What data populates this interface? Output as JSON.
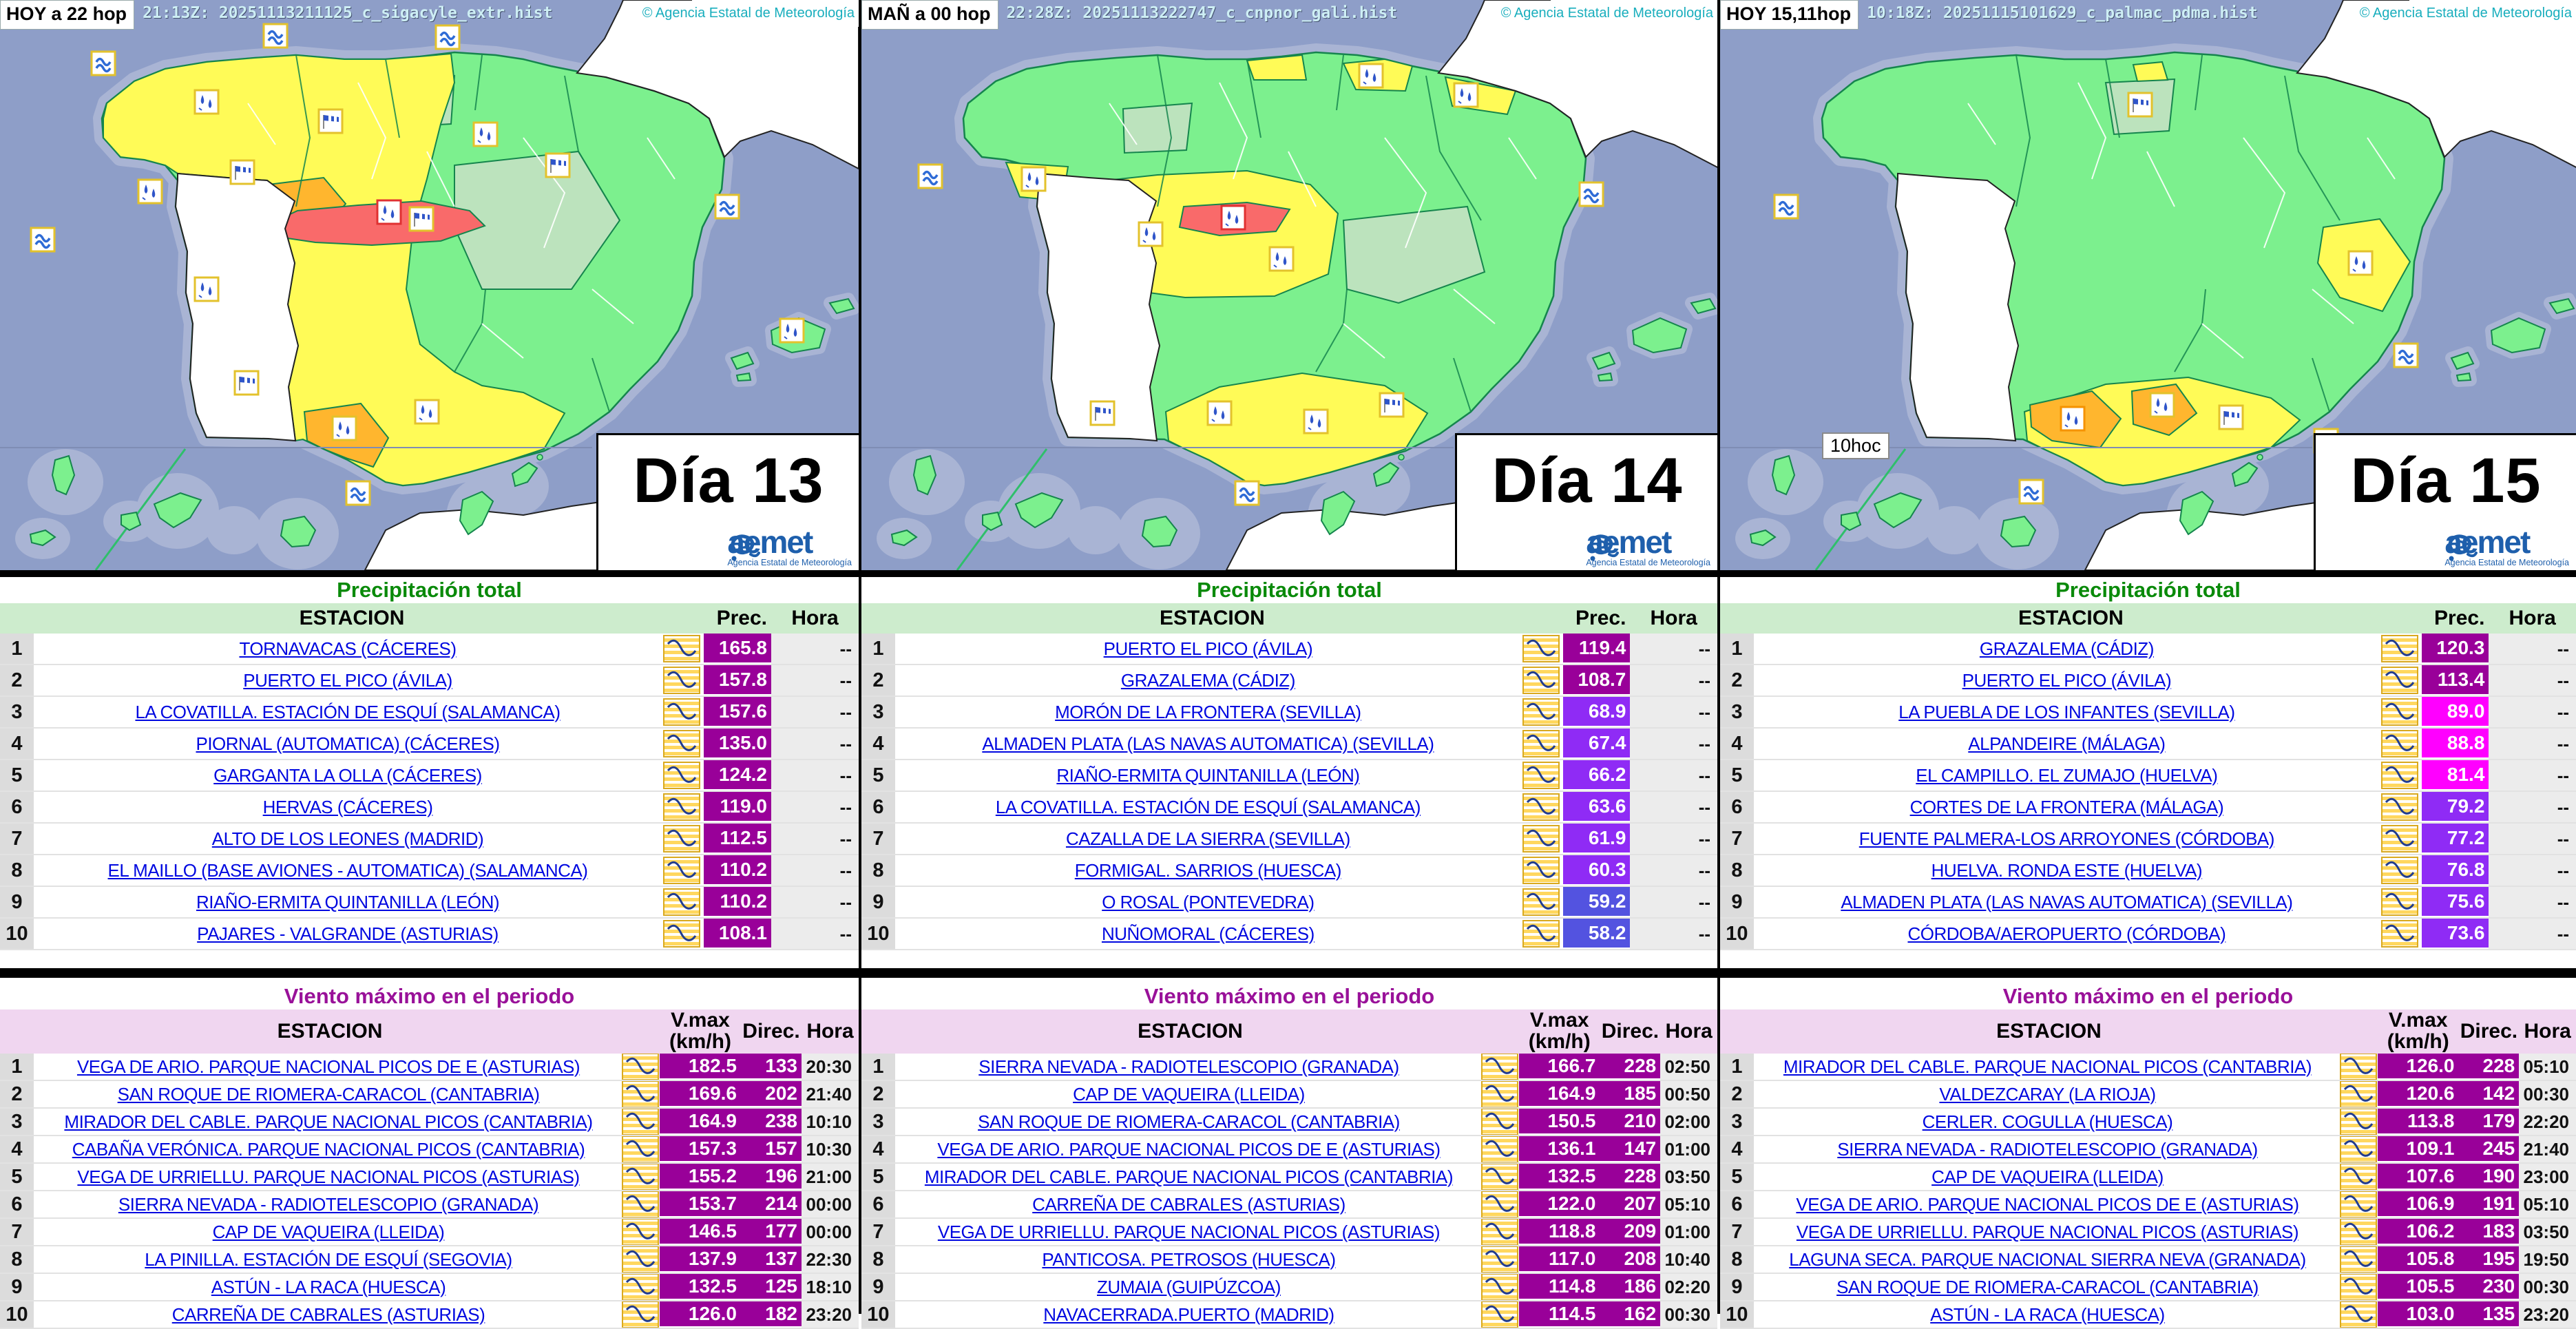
{
  "palette": {
    "sea": "#8e9ec8",
    "coast_buffer": "#a9b4d4",
    "land_green": "#7cf08e",
    "land_pale_green": "#bce3bd",
    "warn_yellow": "#fffb57",
    "warn_orange": "#ffb62e",
    "warn_red": "#f96a6a",
    "prec_over100": "#990099",
    "prec_80_100": "#ff00ff",
    "prec_60_80": "#8f2bf5",
    "prec_40_60": "#5353e0",
    "wind_value": "#990099",
    "link_blue": "#0008e0",
    "title_green": "#0a8a0a",
    "title_purple": "#991199"
  },
  "shared": {
    "copyright": "© Agencia Estatal de Meteorología",
    "precip_title": "Precipitación total",
    "wind_title": "Viento máximo en el periodo",
    "col_estacion": "ESTACION",
    "col_prec": "Prec.",
    "col_hora": "Hora",
    "col_vmax_line1": "V.max",
    "col_vmax_line2": "(km/h)",
    "col_direc": "Direc.",
    "aemet": "aemet",
    "aemet_tagline": "Agencia Estatal de Meteorología"
  },
  "panels": [
    {
      "topbar_mode": "HOY a 22 hop",
      "topbar_stamp": "21:13Z: 20251113211125_c_sigacyle_extr.hist",
      "day_label": "Día 13",
      "precip_rows": [
        {
          "rank": "1",
          "station": "TORNAVACAS (CÁCERES)",
          "prec": "165.8",
          "hora": "--",
          "level": "p100"
        },
        {
          "rank": "2",
          "station": "PUERTO EL PICO (ÁVILA)",
          "prec": "157.8",
          "hora": "--",
          "level": "p100"
        },
        {
          "rank": "3",
          "station": "LA COVATILLA. ESTACIÓN DE ESQUÍ (SALAMANCA)",
          "prec": "157.6",
          "hora": "--",
          "level": "p100"
        },
        {
          "rank": "4",
          "station": "PIORNAL (AUTOMATICA) (CÁCERES)",
          "prec": "135.0",
          "hora": "--",
          "level": "p100"
        },
        {
          "rank": "5",
          "station": "GARGANTA LA OLLA (CÁCERES)",
          "prec": "124.2",
          "hora": "--",
          "level": "p100"
        },
        {
          "rank": "6",
          "station": "HERVAS (CÁCERES)",
          "prec": "119.0",
          "hora": "--",
          "level": "p100"
        },
        {
          "rank": "7",
          "station": "ALTO DE LOS LEONES (MADRID)",
          "prec": "112.5",
          "hora": "--",
          "level": "p100"
        },
        {
          "rank": "8",
          "station": "EL MAILLO (BASE AVIONES - AUTOMATICA) (SALAMANCA)",
          "prec": "110.2",
          "hora": "--",
          "level": "p100"
        },
        {
          "rank": "9",
          "station": "RIAÑO-ERMITA QUINTANILLA (LEÓN)",
          "prec": "110.2",
          "hora": "--",
          "level": "p100"
        },
        {
          "rank": "10",
          "station": "PAJARES - VALGRANDE (ASTURIAS)",
          "prec": "108.1",
          "hora": "--",
          "level": "p100"
        }
      ],
      "wind_rows": [
        {
          "rank": "1",
          "station": "VEGA DE ARIO. PARQUE NACIONAL PICOS DE E (ASTURIAS)",
          "vmax": "182.5",
          "direc": "133",
          "hora": "20:30"
        },
        {
          "rank": "2",
          "station": "SAN ROQUE DE RIOMERA-CARACOL (CANTABRIA)",
          "vmax": "169.6",
          "direc": "202",
          "hora": "21:40"
        },
        {
          "rank": "3",
          "station": "MIRADOR DEL CABLE. PARQUE NACIONAL PICOS (CANTABRIA)",
          "vmax": "164.9",
          "direc": "238",
          "hora": "10:10"
        },
        {
          "rank": "4",
          "station": "CABAÑA VERÓNICA. PARQUE NACIONAL PICOS (CANTABRIA)",
          "vmax": "157.3",
          "direc": "157",
          "hora": "10:30"
        },
        {
          "rank": "5",
          "station": "VEGA DE URRIELLU. PARQUE NACIONAL PICOS (ASTURIAS)",
          "vmax": "155.2",
          "direc": "196",
          "hora": "21:00"
        },
        {
          "rank": "6",
          "station": "SIERRA NEVADA - RADIOTELESCOPIO (GRANADA)",
          "vmax": "153.7",
          "direc": "214",
          "hora": "00:00"
        },
        {
          "rank": "7",
          "station": "CAP DE VAQUEIRA (LLEIDA)",
          "vmax": "146.5",
          "direc": "177",
          "hora": "00:00"
        },
        {
          "rank": "8",
          "station": "LA PINILLA. ESTACIÓN DE ESQUÍ (SEGOVIA)",
          "vmax": "137.9",
          "direc": "137",
          "hora": "22:30"
        },
        {
          "rank": "9",
          "station": "ASTÚN - LA RACA (HUESCA)",
          "vmax": "132.5",
          "direc": "125",
          "hora": "18:10"
        },
        {
          "rank": "10",
          "station": "CARREÑA DE CABRALES (ASTURIAS)",
          "vmax": "126.0",
          "direc": "182",
          "hora": "23:20"
        }
      ]
    },
    {
      "topbar_mode": "MAÑ a 00 hop",
      "topbar_stamp": "22:28Z: 20251113222747_c_cnpnor_gali.hist",
      "day_label": "Día 14",
      "precip_rows": [
        {
          "rank": "1",
          "station": "PUERTO EL PICO (ÁVILA)",
          "prec": "119.4",
          "hora": "--",
          "level": "p100"
        },
        {
          "rank": "2",
          "station": "GRAZALEMA (CÁDIZ)",
          "prec": "108.7",
          "hora": "--",
          "level": "p100"
        },
        {
          "rank": "3",
          "station": "MORÓN DE LA FRONTERA (SEVILLA)",
          "prec": "68.9",
          "hora": "--",
          "level": "p60"
        },
        {
          "rank": "4",
          "station": "ALMADEN PLATA (LAS NAVAS AUTOMATICA) (SEVILLA)",
          "prec": "67.4",
          "hora": "--",
          "level": "p60"
        },
        {
          "rank": "5",
          "station": "RIAÑO-ERMITA QUINTANILLA (LEÓN)",
          "prec": "66.2",
          "hora": "--",
          "level": "p60"
        },
        {
          "rank": "6",
          "station": "LA COVATILLA. ESTACIÓN DE ESQUÍ (SALAMANCA)",
          "prec": "63.6",
          "hora": "--",
          "level": "p60"
        },
        {
          "rank": "7",
          "station": "CAZALLA DE LA SIERRA (SEVILLA)",
          "prec": "61.9",
          "hora": "--",
          "level": "p60"
        },
        {
          "rank": "8",
          "station": "FORMIGAL. SARRIOS (HUESCA)",
          "prec": "60.3",
          "hora": "--",
          "level": "p60"
        },
        {
          "rank": "9",
          "station": "O ROSAL (PONTEVEDRA)",
          "prec": "59.2",
          "hora": "--",
          "level": "p40"
        },
        {
          "rank": "10",
          "station": "NUÑOMORAL (CÁCERES)",
          "prec": "58.2",
          "hora": "--",
          "level": "p40"
        }
      ],
      "wind_rows": [
        {
          "rank": "1",
          "station": "SIERRA NEVADA - RADIOTELESCOPIO (GRANADA)",
          "vmax": "166.7",
          "direc": "228",
          "hora": "02:50"
        },
        {
          "rank": "2",
          "station": "CAP DE VAQUEIRA (LLEIDA)",
          "vmax": "164.9",
          "direc": "185",
          "hora": "00:50"
        },
        {
          "rank": "3",
          "station": "SAN ROQUE DE RIOMERA-CARACOL (CANTABRIA)",
          "vmax": "150.5",
          "direc": "210",
          "hora": "02:00"
        },
        {
          "rank": "4",
          "station": "VEGA DE ARIO. PARQUE NACIONAL PICOS DE E (ASTURIAS)",
          "vmax": "136.1",
          "direc": "147",
          "hora": "01:00"
        },
        {
          "rank": "5",
          "station": "MIRADOR DEL CABLE. PARQUE NACIONAL PICOS (CANTABRIA)",
          "vmax": "132.5",
          "direc": "228",
          "hora": "03:50"
        },
        {
          "rank": "6",
          "station": "CARREÑA DE CABRALES (ASTURIAS)",
          "vmax": "122.0",
          "direc": "207",
          "hora": "05:10"
        },
        {
          "rank": "7",
          "station": "VEGA DE URRIELLU. PARQUE NACIONAL PICOS (ASTURIAS)",
          "vmax": "118.8",
          "direc": "209",
          "hora": "01:00"
        },
        {
          "rank": "8",
          "station": "PANTICOSA. PETROSOS (HUESCA)",
          "vmax": "117.0",
          "direc": "208",
          "hora": "10:40"
        },
        {
          "rank": "9",
          "station": "ZUMAIA (GUIPÚZCOA)",
          "vmax": "114.8",
          "direc": "186",
          "hora": "02:20"
        },
        {
          "rank": "10",
          "station": "NAVACERRADA.PUERTO (MADRID)",
          "vmax": "114.5",
          "direc": "162",
          "hora": "00:30"
        }
      ]
    },
    {
      "topbar_mode": "HOY 15,11hop",
      "topbar_stamp": "10:18Z: 20251115101629_c_palmac_pdma.hist",
      "day_label": "Día 15",
      "inset_label": "10hoc",
      "precip_rows": [
        {
          "rank": "1",
          "station": "GRAZALEMA (CÁDIZ)",
          "prec": "120.3",
          "hora": "--",
          "level": "p100"
        },
        {
          "rank": "2",
          "station": "PUERTO EL PICO (ÁVILA)",
          "prec": "113.4",
          "hora": "--",
          "level": "p100"
        },
        {
          "rank": "3",
          "station": "LA PUEBLA DE LOS INFANTES (SEVILLA)",
          "prec": "89.0",
          "hora": "--",
          "level": "p80"
        },
        {
          "rank": "4",
          "station": "ALPANDEIRE (MÁLAGA)",
          "prec": "88.8",
          "hora": "--",
          "level": "p80"
        },
        {
          "rank": "5",
          "station": "EL CAMPILLO. EL ZUMAJO (HUELVA)",
          "prec": "81.4",
          "hora": "--",
          "level": "p80"
        },
        {
          "rank": "6",
          "station": "CORTES DE LA FRONTERA (MÁLAGA)",
          "prec": "79.2",
          "hora": "--",
          "level": "p60"
        },
        {
          "rank": "7",
          "station": "FUENTE PALMERA-LOS ARROYONES (CÓRDOBA)",
          "prec": "77.2",
          "hora": "--",
          "level": "p60"
        },
        {
          "rank": "8",
          "station": "HUELVA. RONDA ESTE (HUELVA)",
          "prec": "76.8",
          "hora": "--",
          "level": "p60"
        },
        {
          "rank": "9",
          "station": "ALMADEN PLATA (LAS NAVAS AUTOMATICA) (SEVILLA)",
          "prec": "75.6",
          "hora": "--",
          "level": "p60"
        },
        {
          "rank": "10",
          "station": "CÓRDOBA/AEROPUERTO (CÓRDOBA)",
          "prec": "73.6",
          "hora": "--",
          "level": "p60"
        }
      ],
      "wind_rows": [
        {
          "rank": "1",
          "station": "MIRADOR DEL CABLE. PARQUE NACIONAL PICOS (CANTABRIA)",
          "vmax": "126.0",
          "direc": "228",
          "hora": "05:10"
        },
        {
          "rank": "2",
          "station": "VALDEZCARAY (LA RIOJA)",
          "vmax": "120.6",
          "direc": "142",
          "hora": "00:30"
        },
        {
          "rank": "3",
          "station": "CERLER. COGULLA (HUESCA)",
          "vmax": "113.8",
          "direc": "179",
          "hora": "22:20"
        },
        {
          "rank": "4",
          "station": "SIERRA NEVADA - RADIOTELESCOPIO (GRANADA)",
          "vmax": "109.1",
          "direc": "245",
          "hora": "21:40"
        },
        {
          "rank": "5",
          "station": "CAP DE VAQUEIRA (LLEIDA)",
          "vmax": "107.6",
          "direc": "190",
          "hora": "23:00"
        },
        {
          "rank": "6",
          "station": "VEGA DE ARIO. PARQUE NACIONAL PICOS DE E (ASTURIAS)",
          "vmax": "106.9",
          "direc": "191",
          "hora": "05:10"
        },
        {
          "rank": "7",
          "station": "VEGA DE URRIELLU. PARQUE NACIONAL PICOS (ASTURIAS)",
          "vmax": "106.2",
          "direc": "183",
          "hora": "03:50"
        },
        {
          "rank": "8",
          "station": "LAGUNA SECA. PARQUE NACIONAL SIERRA NEVA (GRANADA)",
          "vmax": "105.8",
          "direc": "195",
          "hora": "19:50"
        },
        {
          "rank": "9",
          "station": "SAN ROQUE DE RIOMERA-CARACOL (CANTABRIA)",
          "vmax": "105.5",
          "direc": "230",
          "hora": "00:30"
        },
        {
          "rank": "10",
          "station": "ASTÚN - LA RACA (HUESCA)",
          "vmax": "103.0",
          "direc": "135",
          "hora": "23:20"
        }
      ]
    }
  ]
}
